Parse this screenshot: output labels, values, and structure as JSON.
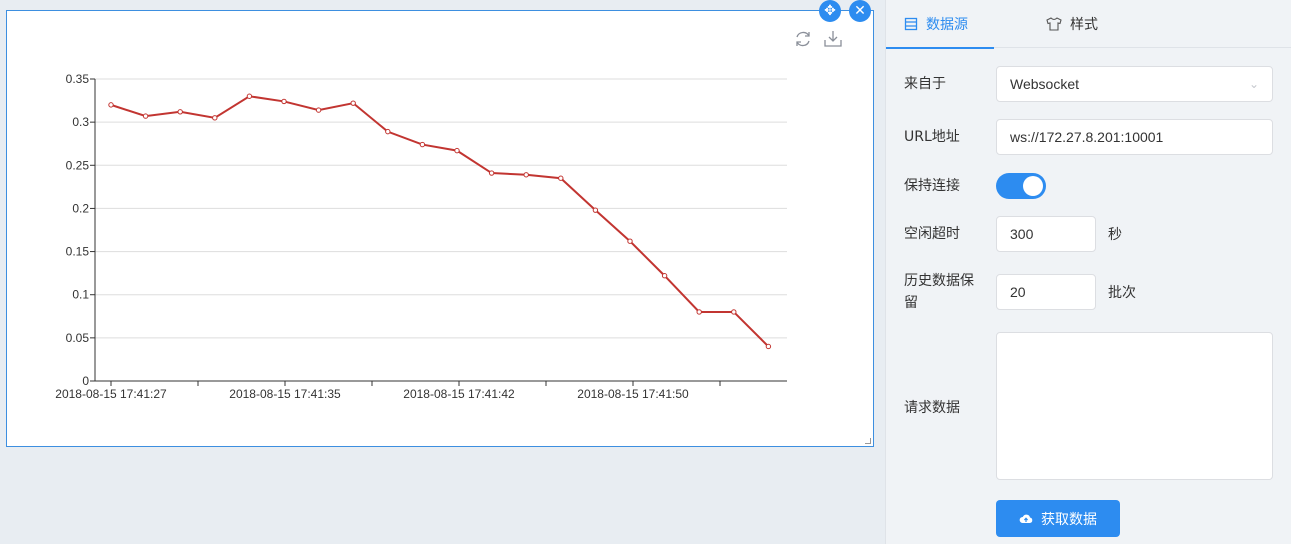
{
  "widget": {
    "move_icon": "move-icon",
    "close_icon": "close-icon",
    "toolbox": [
      "refresh-icon",
      "download-icon"
    ]
  },
  "chart_data": {
    "type": "line",
    "x": [
      "2018-08-15 17:41:27",
      "",
      "2018-08-15 17:41:35",
      "",
      "",
      "2018-08-15 17:41:42",
      "",
      "",
      "2018-08-15 17:41:50",
      "",
      "",
      "",
      "",
      "",
      "",
      "",
      "",
      "",
      "",
      ""
    ],
    "tick_labels": [
      "2018-08-15 17:41:27",
      "2018-08-15 17:41:35",
      "2018-08-15 17:41:42",
      "2018-08-15 17:41:50"
    ],
    "y_ticks": [
      "0",
      "0.05",
      "0.1",
      "0.15",
      "0.2",
      "0.25",
      "0.3",
      "0.35"
    ],
    "series": [
      {
        "values": [
          0.32,
          0.307,
          0.312,
          0.305,
          0.33,
          0.324,
          0.314,
          0.322,
          0.289,
          0.274,
          0.267,
          0.241,
          0.239,
          0.235,
          0.198,
          0.162,
          0.122,
          0.08,
          0.08,
          0.04
        ],
        "color": "#c23531"
      }
    ],
    "ylim": [
      0,
      0.35
    ],
    "grid": true,
    "title": "",
    "xlabel": "",
    "ylabel": ""
  },
  "panel": {
    "tabs": [
      {
        "label": "数据源",
        "icon": "list-icon",
        "active": true
      },
      {
        "label": "样式",
        "icon": "shirt-icon",
        "active": false
      }
    ],
    "source_label": "来自于",
    "source_value": "Websocket",
    "url_label": "URL地址",
    "url_value": "ws://172.27.8.201:10001",
    "keepalive_label": "保持连接",
    "keepalive_on": true,
    "idle_label": "空闲超时",
    "idle_value": "300",
    "idle_unit": "秒",
    "history_label": "历史数据保留",
    "history_value": "20",
    "history_unit": "批次",
    "request_label": "请求数据",
    "request_value": "",
    "fetch_button": "获取数据",
    "fetch_icon": "cloud-upload-icon",
    "accent": "#2d8cf0"
  }
}
